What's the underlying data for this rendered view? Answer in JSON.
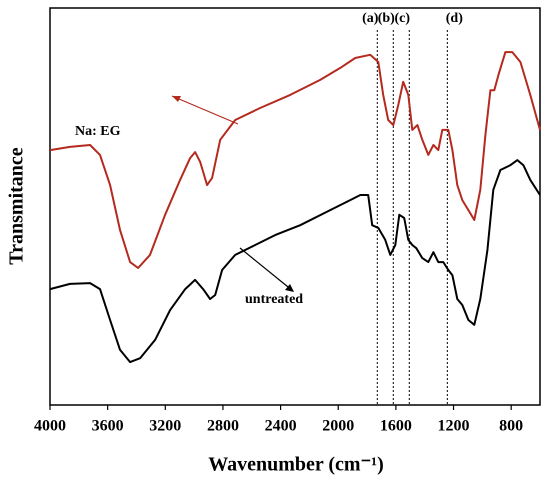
{
  "chart_data": {
    "type": "line",
    "x_label": "Wavenumber (cm⁻¹)",
    "y_label": "Transmitance",
    "xlim": [
      4000,
      600
    ],
    "ylim": [
      0,
      100
    ],
    "xticks": [
      4000,
      3600,
      3200,
      2800,
      2400,
      2000,
      1600,
      1200,
      800
    ],
    "series": [
      {
        "name": "Na: EG",
        "color": "#b52a1e",
        "x": [
          4000,
          3861,
          3722,
          3653,
          3583,
          3514,
          3444,
          3389,
          3306,
          3201,
          3097,
          3028,
          2993,
          2958,
          2910,
          2875,
          2819,
          2715,
          2542,
          2333,
          2125,
          1986,
          1882,
          1778,
          1722,
          1688,
          1653,
          1618,
          1583,
          1549,
          1514,
          1486,
          1451,
          1417,
          1375,
          1340,
          1306,
          1278,
          1236,
          1208,
          1174,
          1139,
          1097,
          1056,
          1014,
          979,
          944,
          917,
          889,
          840,
          792,
          736,
          667,
          600
        ],
        "values": [
          64.2,
          65,
          65.5,
          63,
          55.4,
          44.1,
          36,
          34.5,
          37.8,
          47.9,
          56.7,
          62.2,
          63.7,
          61.2,
          55.4,
          57.2,
          66.8,
          71.8,
          74.8,
          78.1,
          81.9,
          84.9,
          87.4,
          88.2,
          86.4,
          78.1,
          71.8,
          70.5,
          75.6,
          81.4,
          78.1,
          69.3,
          70.5,
          66.8,
          63,
          65.5,
          64.2,
          69.3,
          69.3,
          64.2,
          55.4,
          51.6,
          49.1,
          46.6,
          54.2,
          68,
          79.3,
          79.3,
          83.1,
          88.9,
          88.9,
          86.4,
          78.1,
          69.3
        ]
      },
      {
        "name": "untreated",
        "color": "#000000",
        "x": [
          4000,
          3861,
          3722,
          3653,
          3583,
          3514,
          3444,
          3375,
          3271,
          3167,
          3062,
          2993,
          2938,
          2889,
          2854,
          2806,
          2715,
          2576,
          2438,
          2264,
          2056,
          1917,
          1847,
          1792,
          1764,
          1722,
          1674,
          1639,
          1604,
          1576,
          1542,
          1514,
          1486,
          1458,
          1417,
          1375,
          1340,
          1306,
          1271,
          1236,
          1208,
          1174,
          1139,
          1097,
          1056,
          1014,
          965,
          924,
          875,
          806,
          757,
          715,
          667,
          600
        ],
        "values": [
          29.2,
          30.5,
          30.7,
          29.2,
          21.4,
          13.9,
          10.8,
          11.8,
          16.4,
          23.9,
          29.2,
          31.5,
          29.2,
          26.7,
          27.7,
          34,
          37.8,
          40.3,
          42.8,
          45.3,
          49.1,
          51.6,
          52.9,
          52.9,
          45.3,
          44.6,
          41.6,
          37.8,
          40.3,
          47.9,
          47.1,
          41.6,
          40.3,
          39.5,
          37,
          36,
          38.5,
          36,
          36,
          34,
          32.7,
          26.7,
          25.2,
          21.4,
          20.2,
          26.7,
          39,
          54.2,
          59.2,
          60.4,
          61.7,
          60.4,
          56.7,
          52.9
        ]
      }
    ],
    "annotations": [
      {
        "label": "(a)",
        "x": 1729
      },
      {
        "label": "(b)",
        "x": 1618
      },
      {
        "label": "(c)",
        "x": 1507
      },
      {
        "label": "(d)",
        "x": 1243
      }
    ]
  }
}
